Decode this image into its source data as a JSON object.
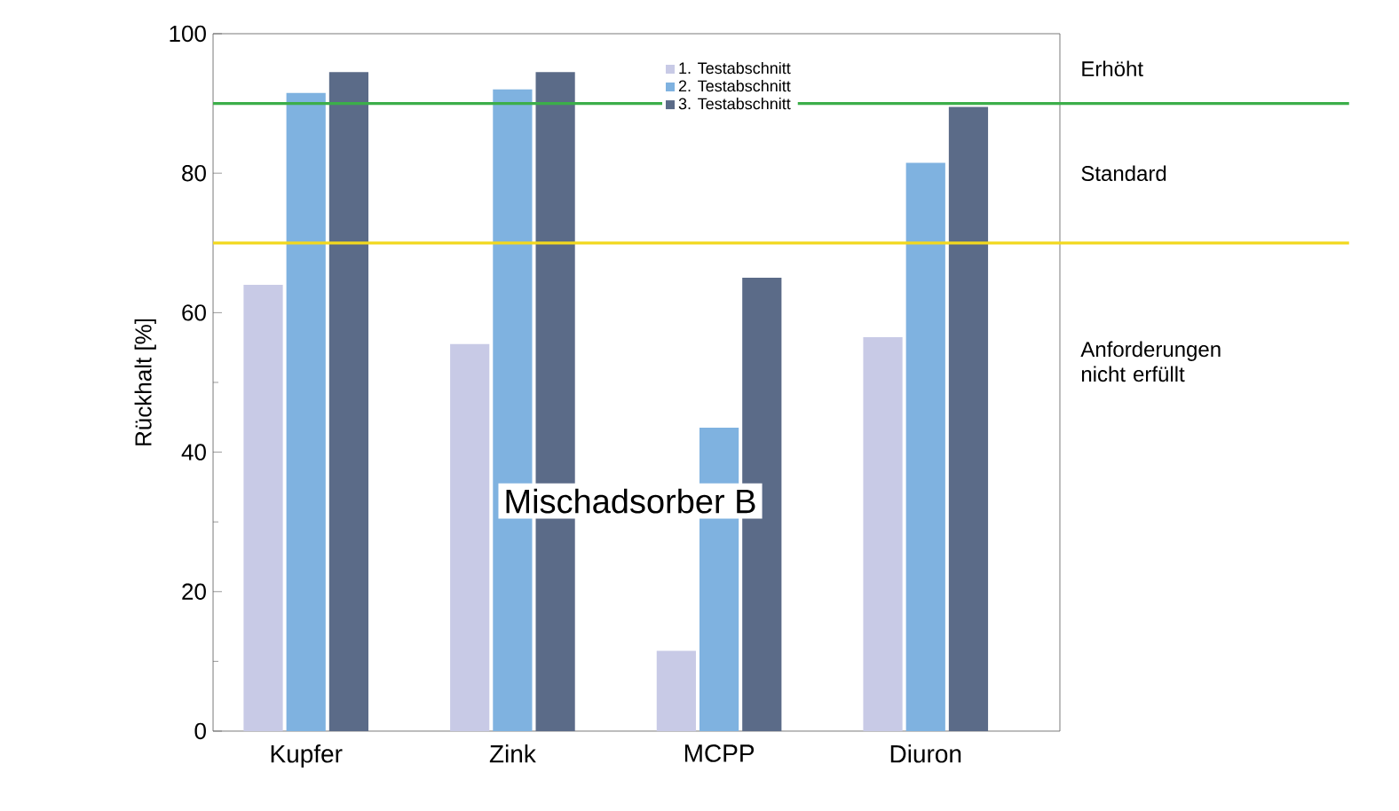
{
  "chart_data": {
    "type": "bar",
    "ylabel": "Rückhalt [%]",
    "categories": [
      "Kupfer",
      "Zink",
      "MCPP",
      "Diuron"
    ],
    "series": [
      {
        "name": "1. Testabschnitt",
        "color": "#c8cae6",
        "values": [
          64,
          55.5,
          11.5,
          56.5
        ]
      },
      {
        "name": "2. Testabschnitt",
        "color": "#7fb2e0",
        "values": [
          91.5,
          92,
          43.5,
          81.5
        ]
      },
      {
        "name": "3. Testabschnitt",
        "color": "#5b6b88",
        "values": [
          94.5,
          94.5,
          65,
          89.5
        ]
      }
    ],
    "ylim": [
      0,
      100
    ],
    "yticks": [
      0,
      20,
      40,
      60,
      80,
      100
    ],
    "grid": false,
    "legend": "top right",
    "ref_lines": [
      {
        "axis": "y",
        "value": 90,
        "color": "#3cae4a"
      },
      {
        "axis": "y",
        "value": 70,
        "color": "#f2d81e"
      }
    ],
    "annotations": [
      "Erhöht",
      "Standard",
      "Anforderungen nicht erfüllt",
      "Mischadsorber B"
    ]
  }
}
